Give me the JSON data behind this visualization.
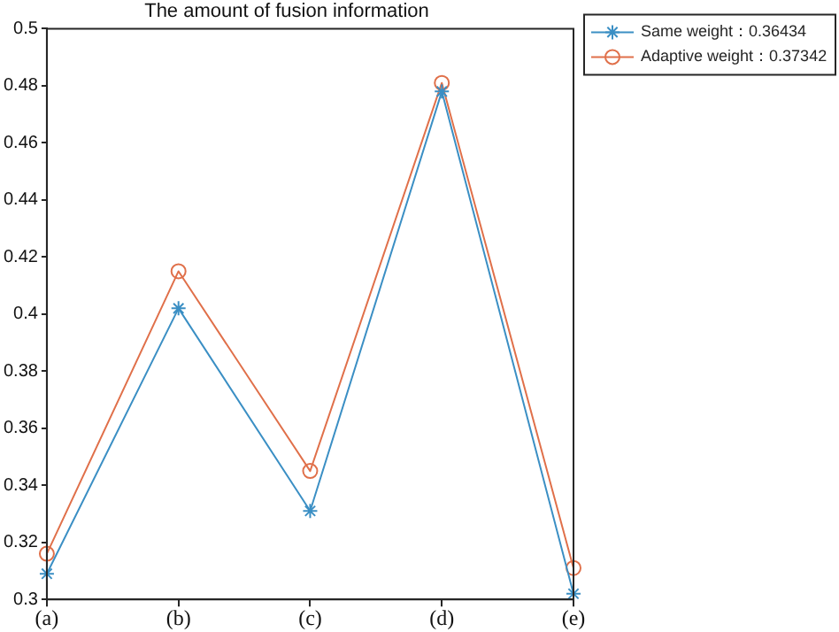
{
  "chart_data": {
    "type": "line",
    "title": "The amount of fusion information",
    "categories": [
      "(a)",
      "(b)",
      "(c)",
      "(d)",
      "(e)"
    ],
    "series": [
      {
        "name": "Same weight：0.36434",
        "color": "#3b8fc4",
        "marker": "cross",
        "values": [
          0.309,
          0.402,
          0.331,
          0.478,
          0.302
        ]
      },
      {
        "name": "Adaptive weight：0.37342",
        "color": "#e0704a",
        "marker": "circle",
        "values": [
          0.316,
          0.415,
          0.345,
          0.481,
          0.311
        ]
      }
    ],
    "ylim": [
      0.3,
      0.5
    ],
    "yticks": [
      0.3,
      0.32,
      0.34,
      0.36,
      0.38,
      0.4,
      0.42,
      0.44,
      0.46,
      0.48,
      0.5
    ],
    "grid": false,
    "legend": "top right",
    "line_style": "solid"
  }
}
